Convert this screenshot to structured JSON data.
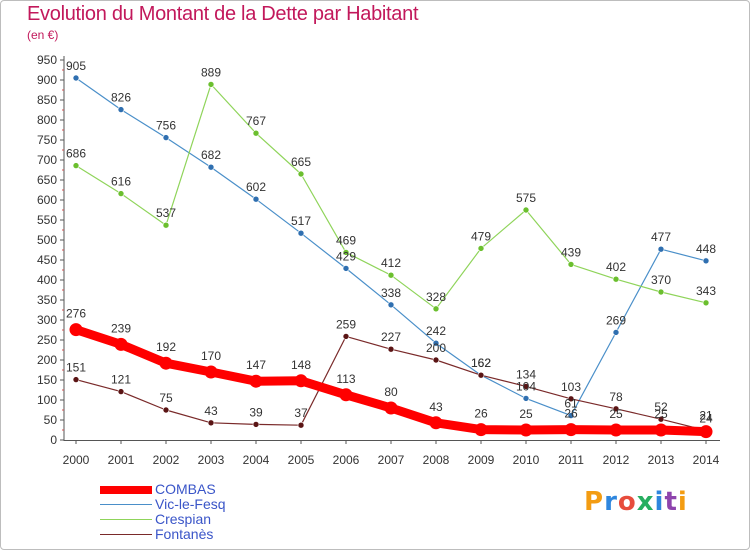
{
  "header": {
    "title": "Evolution du Montant de la Dette par Habitant",
    "subtitle": "(en €)"
  },
  "logo": {
    "text": "Proxiti",
    "letters": [
      {
        "ch": "P",
        "color": "#f39c12"
      },
      {
        "ch": "r",
        "color": "#2e86de"
      },
      {
        "ch": "o",
        "color": "#e74c3c"
      },
      {
        "ch": "x",
        "color": "#27ae60"
      },
      {
        "ch": "i",
        "color": "#2e86de"
      },
      {
        "ch": "t",
        "color": "#8e44ad"
      },
      {
        "ch": "i",
        "color": "#f39c12"
      }
    ]
  },
  "chart_data": {
    "type": "line",
    "title": "Evolution du Montant de la Dette par Habitant",
    "subtitle": "(en €)",
    "xlabel": "",
    "ylabel": "",
    "ylim": [
      0,
      950
    ],
    "y_ticks": [
      0,
      50,
      100,
      150,
      200,
      250,
      300,
      350,
      400,
      450,
      500,
      550,
      600,
      650,
      700,
      750,
      800,
      850,
      900,
      950
    ],
    "grid": false,
    "legend_position": "bottom-left",
    "x": [
      "2000",
      "2001",
      "2002",
      "2003",
      "2004",
      "2005",
      "2006",
      "2007",
      "2008",
      "2009",
      "2010",
      "2011",
      "2012",
      "2013",
      "2014"
    ],
    "series": [
      {
        "name": "Vic-le-Fesq",
        "color": "#4a8fc9",
        "marker": "#2f6fb0",
        "values": [
          905,
          826,
          756,
          682,
          602,
          517,
          429,
          338,
          242,
          162,
          104,
          61,
          269,
          477,
          448
        ]
      },
      {
        "name": "Crespian",
        "color": "#8fd45a",
        "marker": "#6bbf2e",
        "values": [
          686,
          616,
          537,
          889,
          767,
          665,
          469,
          412,
          328,
          479,
          575,
          439,
          402,
          370,
          343
        ]
      },
      {
        "name": "Fontanès",
        "color": "#7a2a2a",
        "marker": "#5a1414",
        "values": [
          151,
          121,
          75,
          43,
          39,
          37,
          259,
          227,
          200,
          162,
          134,
          103,
          78,
          52,
          24
        ]
      },
      {
        "name": "COMBAS",
        "color": "#ff0000",
        "marker": "#ff0000",
        "values": [
          276,
          239,
          192,
          170,
          147,
          148,
          113,
          80,
          43,
          26,
          25,
          26,
          25,
          25,
          21
        ]
      }
    ],
    "point_labels": {
      "Vic-le-Fesq": [
        "905",
        "826",
        "756",
        "682",
        "602",
        "517",
        "429",
        "338",
        "242",
        "162",
        "104",
        "61",
        "269",
        "477",
        "448"
      ],
      "Crespian": [
        "686",
        "616",
        "537",
        "889",
        "767",
        "665",
        "469",
        "412",
        "328",
        "479",
        "575",
        "439",
        "402",
        "370",
        "343"
      ],
      "Fontanès": [
        "151",
        "121",
        "75",
        "43",
        "39",
        "37",
        "259",
        "227",
        "200",
        "162",
        "134",
        "103",
        "78",
        "52",
        "24"
      ],
      "COMBAS": [
        "276",
        "239",
        "192",
        "170",
        "147",
        "148",
        "113",
        "80",
        "43",
        "26",
        "25",
        "26",
        "25",
        "25",
        "21"
      ]
    },
    "legend": [
      "COMBAS",
      "Vic-le-Fesq",
      "Crespian",
      "Fontanès"
    ]
  }
}
